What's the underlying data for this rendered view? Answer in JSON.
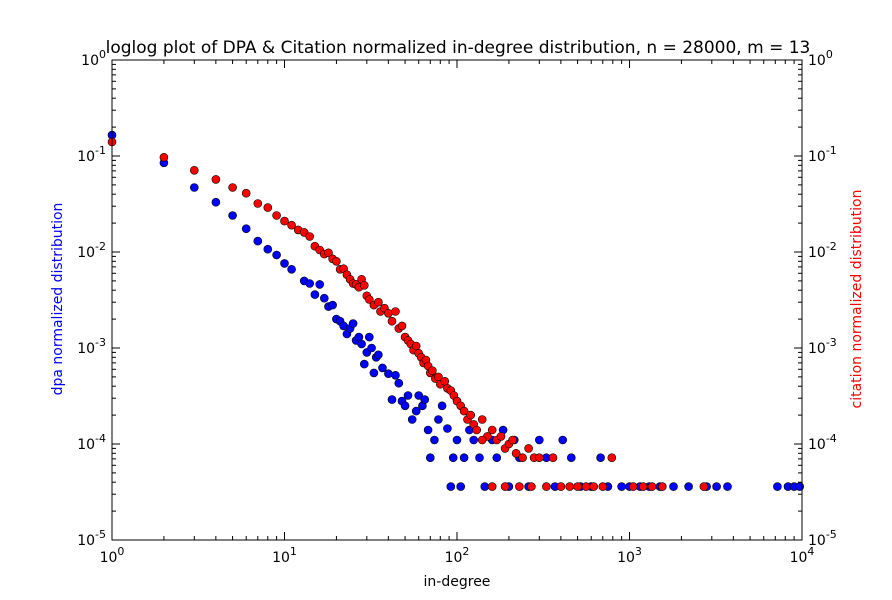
{
  "chart_data": {
    "type": "scatter",
    "title": "loglog plot of DPA & Citation normalized in-degree distribution, n = 28000, m = 13",
    "xlabel": "in-degree",
    "ylabel_left": "dpa normalized distribution",
    "ylabel_right": "citation normalized distribution",
    "x_scale": "log",
    "y_scale": "log",
    "xlim": [
      1,
      10000
    ],
    "ylim": [
      1e-05,
      1
    ],
    "x_tick_labels": [
      "10^0",
      "10^1",
      "10^2",
      "10^3",
      "10^4"
    ],
    "y_tick_labels": [
      "10^-5",
      "10^-4",
      "10^-3",
      "10^-2",
      "10^-1",
      "10^0"
    ],
    "grid": false,
    "colors": {
      "dpa": "#0000ff",
      "citation": "#ff0000",
      "axis": "#000000"
    },
    "series": [
      {
        "key": "dpa",
        "points": [
          [
            1,
            0.165
          ],
          [
            2,
            0.085
          ],
          [
            3,
            0.047
          ],
          [
            4,
            0.033
          ],
          [
            5,
            0.024
          ],
          [
            6,
            0.0175
          ],
          [
            7,
            0.013
          ],
          [
            8,
            0.0107
          ],
          [
            9,
            0.0093
          ],
          [
            10,
            0.0076
          ],
          [
            11,
            0.0066
          ],
          [
            13,
            0.005
          ],
          [
            14,
            0.0047
          ],
          [
            15,
            0.0036
          ],
          [
            16,
            0.0046
          ],
          [
            17,
            0.0033
          ],
          [
            18,
            0.0027
          ],
          [
            19,
            0.0028
          ],
          [
            20,
            0.002
          ],
          [
            21,
            0.0019
          ],
          [
            22,
            0.0017
          ],
          [
            23,
            0.0014
          ],
          [
            24,
            0.0016
          ],
          [
            25,
            0.0018
          ],
          [
            26,
            0.0012
          ],
          [
            27,
            0.0013
          ],
          [
            28,
            0.0011
          ],
          [
            29,
            0.00068
          ],
          [
            30,
            0.0009
          ],
          [
            31,
            0.0013
          ],
          [
            32,
            0.001
          ],
          [
            33,
            0.00055
          ],
          [
            34,
            0.0008
          ],
          [
            35,
            0.00085
          ],
          [
            37,
            0.00062
          ],
          [
            40,
            0.00054
          ],
          [
            42,
            0.00029
          ],
          [
            44,
            0.00052
          ],
          [
            46,
            0.00043
          ],
          [
            48,
            0.00028
          ],
          [
            50,
            0.00025
          ],
          [
            52,
            0.00032
          ],
          [
            55,
            0.00018
          ],
          [
            58,
            0.00022
          ],
          [
            60,
            0.00032
          ],
          [
            63,
            0.00025
          ],
          [
            65,
            0.00029
          ],
          [
            68,
            0.00014
          ],
          [
            70,
            7.2e-05
          ],
          [
            74,
            0.00011
          ],
          [
            78,
            0.00018
          ],
          [
            82,
            0.00025
          ],
          [
            88,
            0.000145
          ],
          [
            92,
            3.6e-05
          ],
          [
            95,
            7.2e-05
          ],
          [
            100,
            0.00011
          ],
          [
            105,
            3.6e-05
          ],
          [
            110,
            7.2e-05
          ],
          [
            118,
            0.00014
          ],
          [
            125,
            0.00011
          ],
          [
            135,
            7.2e-05
          ],
          [
            145,
            3.6e-05
          ],
          [
            160,
            0.00011
          ],
          [
            170,
            7.2e-05
          ],
          [
            185,
            0.00014
          ],
          [
            200,
            3.6e-05
          ],
          [
            215,
            0.00011
          ],
          [
            230,
            7.2e-05
          ],
          [
            260,
            3.6e-05
          ],
          [
            300,
            0.00011
          ],
          [
            330,
            7.2e-05
          ],
          [
            370,
            3.6e-05
          ],
          [
            410,
            0.00011
          ],
          [
            460,
            7.2e-05
          ],
          [
            520,
            3.6e-05
          ],
          [
            600,
            3.6e-05
          ],
          [
            680,
            7.2e-05
          ],
          [
            750,
            3.6e-05
          ],
          [
            900,
            3.6e-05
          ],
          [
            1000,
            3.6e-05
          ],
          [
            1150,
            3.6e-05
          ],
          [
            1300,
            3.6e-05
          ],
          [
            1500,
            3.6e-05
          ],
          [
            1800,
            3.6e-05
          ],
          [
            2200,
            3.6e-05
          ],
          [
            2800,
            3.6e-05
          ],
          [
            3200,
            3.6e-05
          ],
          [
            3700,
            3.6e-05
          ],
          [
            7200,
            3.6e-05
          ],
          [
            8300,
            3.6e-05
          ],
          [
            9000,
            3.6e-05
          ],
          [
            9700,
            3.6e-05
          ]
        ]
      },
      {
        "key": "citation",
        "points": [
          [
            1,
            0.14
          ],
          [
            2,
            0.097
          ],
          [
            3,
            0.071
          ],
          [
            4,
            0.057
          ],
          [
            5,
            0.047
          ],
          [
            6,
            0.041
          ],
          [
            7,
            0.032
          ],
          [
            8,
            0.029
          ],
          [
            9,
            0.024
          ],
          [
            10,
            0.021
          ],
          [
            11,
            0.019
          ],
          [
            12,
            0.017
          ],
          [
            13,
            0.016
          ],
          [
            14,
            0.0145
          ],
          [
            15,
            0.0115
          ],
          [
            16,
            0.0105
          ],
          [
            17,
            0.0095
          ],
          [
            18,
            0.0098
          ],
          [
            19,
            0.0085
          ],
          [
            20,
            0.008
          ],
          [
            21,
            0.0066
          ],
          [
            22,
            0.0067
          ],
          [
            23,
            0.0058
          ],
          [
            24,
            0.0052
          ],
          [
            25,
            0.0047
          ],
          [
            26,
            0.0046
          ],
          [
            27,
            0.0043
          ],
          [
            28,
            0.0052
          ],
          [
            29,
            0.0045
          ],
          [
            30,
            0.0035
          ],
          [
            31,
            0.0032
          ],
          [
            33,
            0.0028
          ],
          [
            35,
            0.003
          ],
          [
            36,
            0.0024
          ],
          [
            38,
            0.0026
          ],
          [
            40,
            0.0023
          ],
          [
            42,
            0.0019
          ],
          [
            44,
            0.0024
          ],
          [
            46,
            0.0016
          ],
          [
            48,
            0.0017
          ],
          [
            50,
            0.0013
          ],
          [
            52,
            0.0012
          ],
          [
            54,
            0.0011
          ],
          [
            56,
            0.00095
          ],
          [
            58,
            0.00105
          ],
          [
            60,
            0.00088
          ],
          [
            62,
            0.0008
          ],
          [
            64,
            0.0007
          ],
          [
            66,
            0.00075
          ],
          [
            68,
            0.00065
          ],
          [
            70,
            0.00055
          ],
          [
            72,
            0.00058
          ],
          [
            75,
            0.00048
          ],
          [
            78,
            0.0005
          ],
          [
            80,
            0.00042
          ],
          [
            85,
            0.00045
          ],
          [
            88,
            0.00038
          ],
          [
            92,
            0.00036
          ],
          [
            96,
            0.00032
          ],
          [
            100,
            0.00028
          ],
          [
            105,
            0.00025
          ],
          [
            110,
            0.00022
          ],
          [
            115,
            0.00018
          ],
          [
            120,
            0.0002
          ],
          [
            125,
            0.00016
          ],
          [
            130,
            0.00014
          ],
          [
            140,
            0.00018
          ],
          [
            150,
            0.00012
          ],
          [
            160,
            0.00014
          ],
          [
            170,
            0.00011
          ],
          [
            180,
            0.00012
          ],
          [
            190,
            9e-05
          ],
          [
            200,
            0.0001
          ],
          [
            210,
            0.00011
          ],
          [
            220,
            8e-05
          ],
          [
            240,
            7.2e-05
          ],
          [
            260,
            9e-05
          ],
          [
            280,
            7.2e-05
          ],
          [
            300,
            7.2e-05
          ],
          [
            330,
            3.6e-05
          ],
          [
            360,
            7.2e-05
          ],
          [
            400,
            3.6e-05
          ],
          [
            450,
            3.6e-05
          ],
          [
            500,
            3.6e-05
          ],
          [
            560,
            3.6e-05
          ],
          [
            620,
            3.6e-05
          ],
          [
            700,
            3.6e-05
          ],
          [
            790,
            7.2e-05
          ],
          [
            1050,
            3.6e-05
          ],
          [
            1200,
            3.6e-05
          ],
          [
            1350,
            3.6e-05
          ],
          [
            1550,
            3.6e-05
          ],
          [
            2700,
            3.6e-05
          ],
          [
            140,
            0.00011
          ],
          [
            160,
            3.6e-05
          ],
          [
            190,
            3.6e-05
          ],
          [
            230,
            3.6e-05
          ],
          [
            270,
            3.6e-05
          ]
        ]
      }
    ]
  }
}
